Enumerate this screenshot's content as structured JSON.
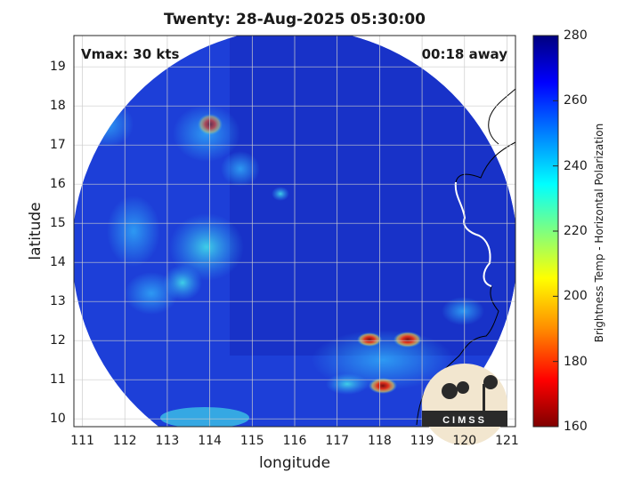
{
  "title": "Twenty: 28-Aug-2025 05:30:00",
  "vmax_text": "Vmax: 30 kts",
  "time_away_text": "00:18 away",
  "map": {
    "xlabel": "longitude",
    "ylabel": "latitude",
    "xlim": [
      110.8,
      121.2
    ],
    "ylim": [
      9.8,
      19.8
    ],
    "x_ticks": [
      "111",
      "112",
      "113",
      "114",
      "115",
      "116",
      "117",
      "118",
      "119",
      "120",
      "121"
    ],
    "y_ticks": [
      "10",
      "11",
      "12",
      "13",
      "14",
      "15",
      "16",
      "17",
      "18",
      "19"
    ],
    "grid": true,
    "swath_colors": {
      "background": "#1d3fd8",
      "cold_region": "#1832c8",
      "cells": [
        "#2fa3f6",
        "#40d6e8",
        "#ffd23a",
        "#e0321e",
        "#7a0f0f"
      ]
    }
  },
  "colorbar": {
    "label": "Brightness Temp - Horizontal Polarization",
    "range": [
      160,
      280
    ],
    "ticks": [
      "280",
      "260",
      "240",
      "220",
      "200",
      "180",
      "160"
    ],
    "colormap": [
      "#7f0000",
      "#ff0000",
      "#ff8c00",
      "#ffff00",
      "#7fff7f",
      "#00ffff",
      "#0080ff",
      "#0000ff",
      "#00007f"
    ]
  },
  "logo": {
    "text": "CIMSS"
  }
}
